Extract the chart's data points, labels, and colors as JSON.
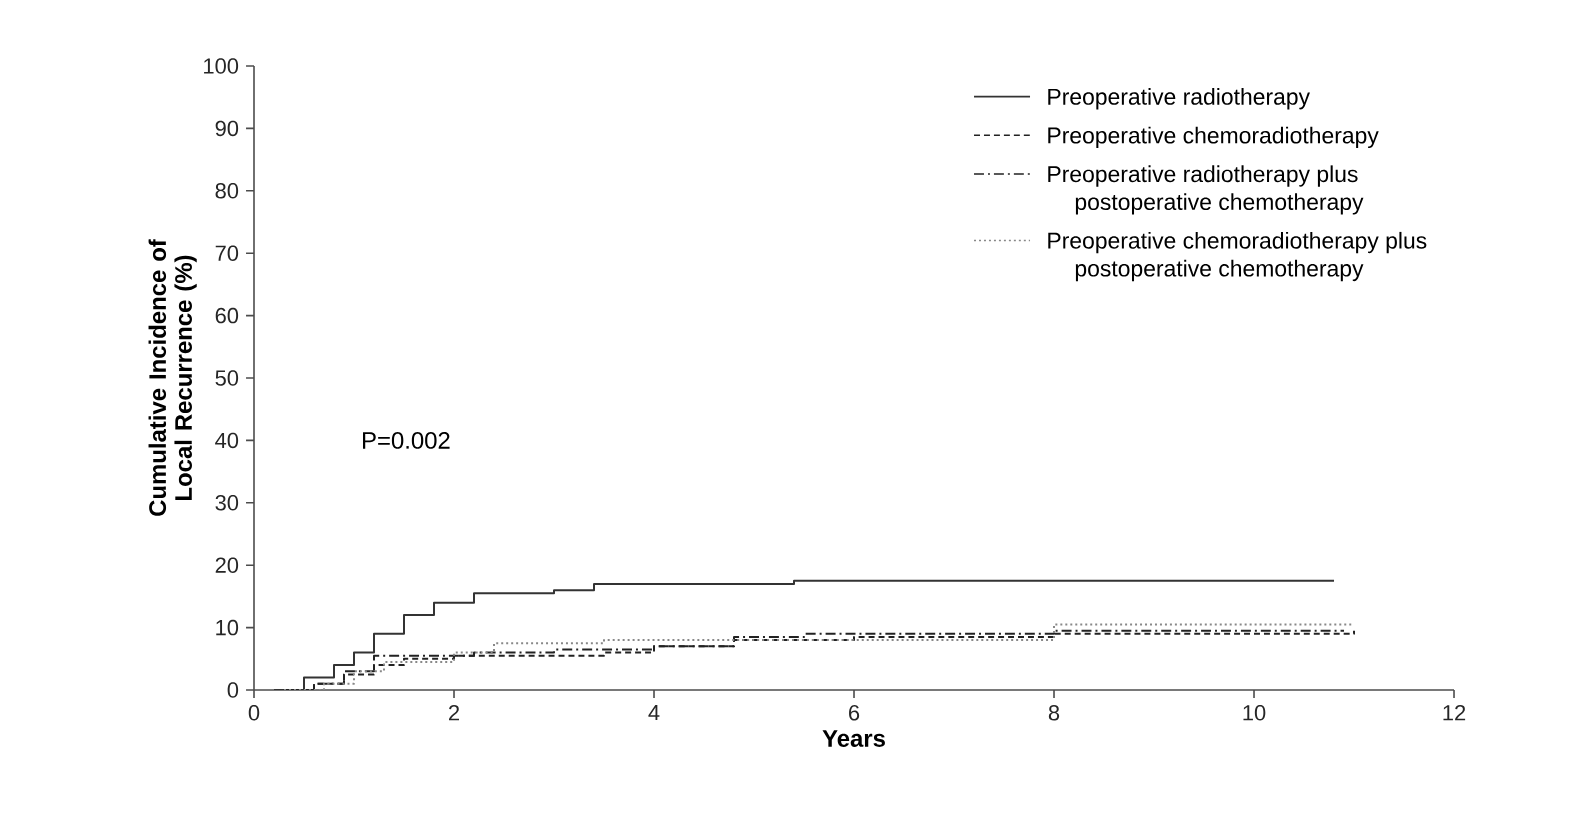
{
  "chart_data": {
    "type": "step",
    "xlabel": "Years",
    "ylabel": "Cumulative Incidence of Local Recurrence (%)",
    "xlim": [
      0,
      12
    ],
    "ylim": [
      0,
      100
    ],
    "xticks": [
      0,
      2,
      4,
      6,
      8,
      10,
      12
    ],
    "yticks": [
      0,
      10,
      20,
      30,
      40,
      50,
      60,
      70,
      80,
      90,
      100
    ],
    "legend": "top right",
    "annotations": [
      "P=0.002"
    ],
    "series": [
      {
        "name": "Preoperative radiotherapy",
        "color": "#333333",
        "line_style": "solid",
        "x": [
          0.2,
          0.5,
          0.8,
          1.0,
          1.2,
          1.5,
          1.8,
          2.2,
          3.0,
          3.4,
          5.4,
          10.8
        ],
        "values": [
          0,
          2,
          4,
          6,
          9,
          12,
          14,
          15.5,
          16,
          17,
          17.5,
          17.5
        ]
      },
      {
        "name": "Preoperative chemoradiotherapy",
        "color": "#222222",
        "line_style": "dashed",
        "x": [
          0.3,
          0.6,
          0.9,
          1.2,
          1.5,
          2.0,
          3.5,
          4.0,
          4.8,
          6.0,
          8.0,
          11.0
        ],
        "values": [
          0,
          1,
          2.5,
          4,
          5,
          5.5,
          6,
          7,
          8,
          8.5,
          9,
          9.5
        ]
      },
      {
        "name": "Preoperative radiotherapy plus postoperative chemotherapy",
        "color": "#222222",
        "line_style": "dashdot",
        "x": [
          0.3,
          0.6,
          0.9,
          1.2,
          2.2,
          3.0,
          4.0,
          4.8,
          5.5,
          8.0,
          10.9
        ],
        "values": [
          0,
          1,
          3,
          5.5,
          6,
          6.5,
          7,
          8.5,
          9,
          9.5,
          9.5
        ]
      },
      {
        "name": "Preoperative chemoradiotherapy plus postoperative chemotherapy",
        "color": "#888888",
        "line_style": "dotted",
        "x": [
          0.3,
          0.7,
          1.0,
          1.3,
          2.0,
          2.4,
          3.5,
          6.4,
          8.0,
          11.0
        ],
        "values": [
          0,
          1,
          3,
          4.5,
          6,
          7.5,
          8,
          8,
          10.5,
          10.5
        ]
      }
    ]
  }
}
